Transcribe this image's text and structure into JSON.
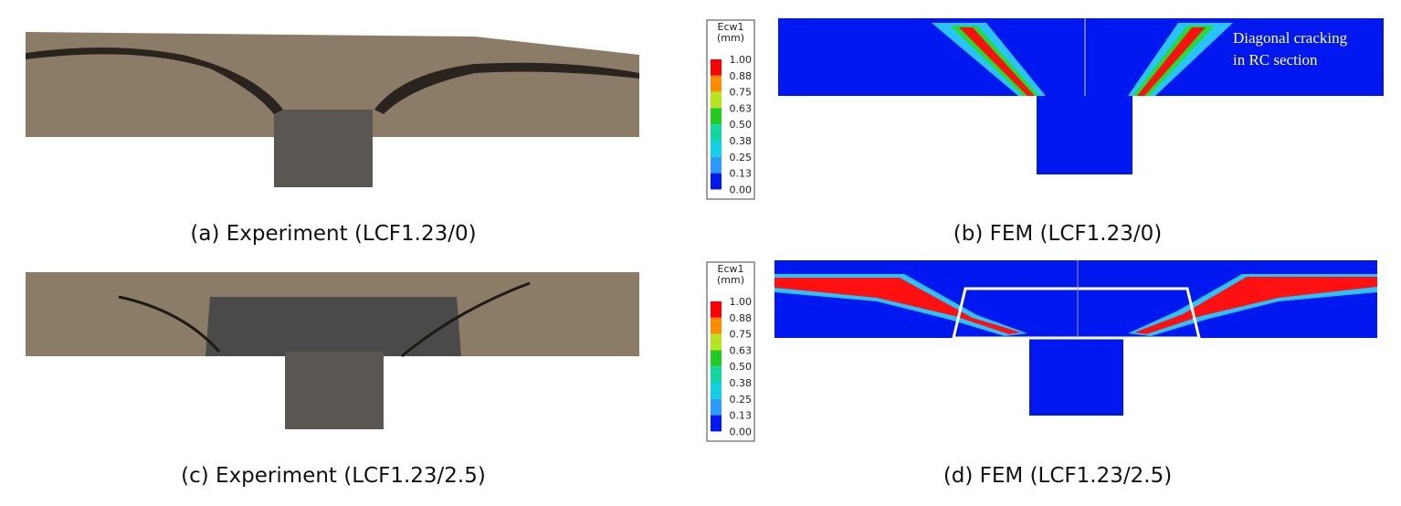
{
  "panels": [
    {
      "caption": "(a)  Experiment  (LCF1.23/0)"
    },
    {
      "caption": "(b)  FEM  (LCF1.23/0)"
    },
    {
      "caption": "(c)  Experiment  (LCF1.23/2.5)"
    },
    {
      "caption": "(d)  FEM  (LCF1.23/2.5)"
    }
  ],
  "legends": [
    {
      "title": [
        "Ecw1",
        "(mm)"
      ],
      "labels": [
        "1.00",
        "0.88",
        "0.75",
        "0.63",
        "0.50",
        "0.38",
        "0.25",
        "0.13",
        "0.00"
      ]
    },
    {
      "title": [
        "Ecw1",
        "(mm)"
      ],
      "labels": [
        "1.00",
        "0.88",
        "0.75",
        "0.63",
        "0.50",
        "0.38",
        "0.25",
        "0.13",
        "0.00"
      ]
    }
  ],
  "annotation": [
    "Diagonal cracking",
    "in RC section"
  ]
}
